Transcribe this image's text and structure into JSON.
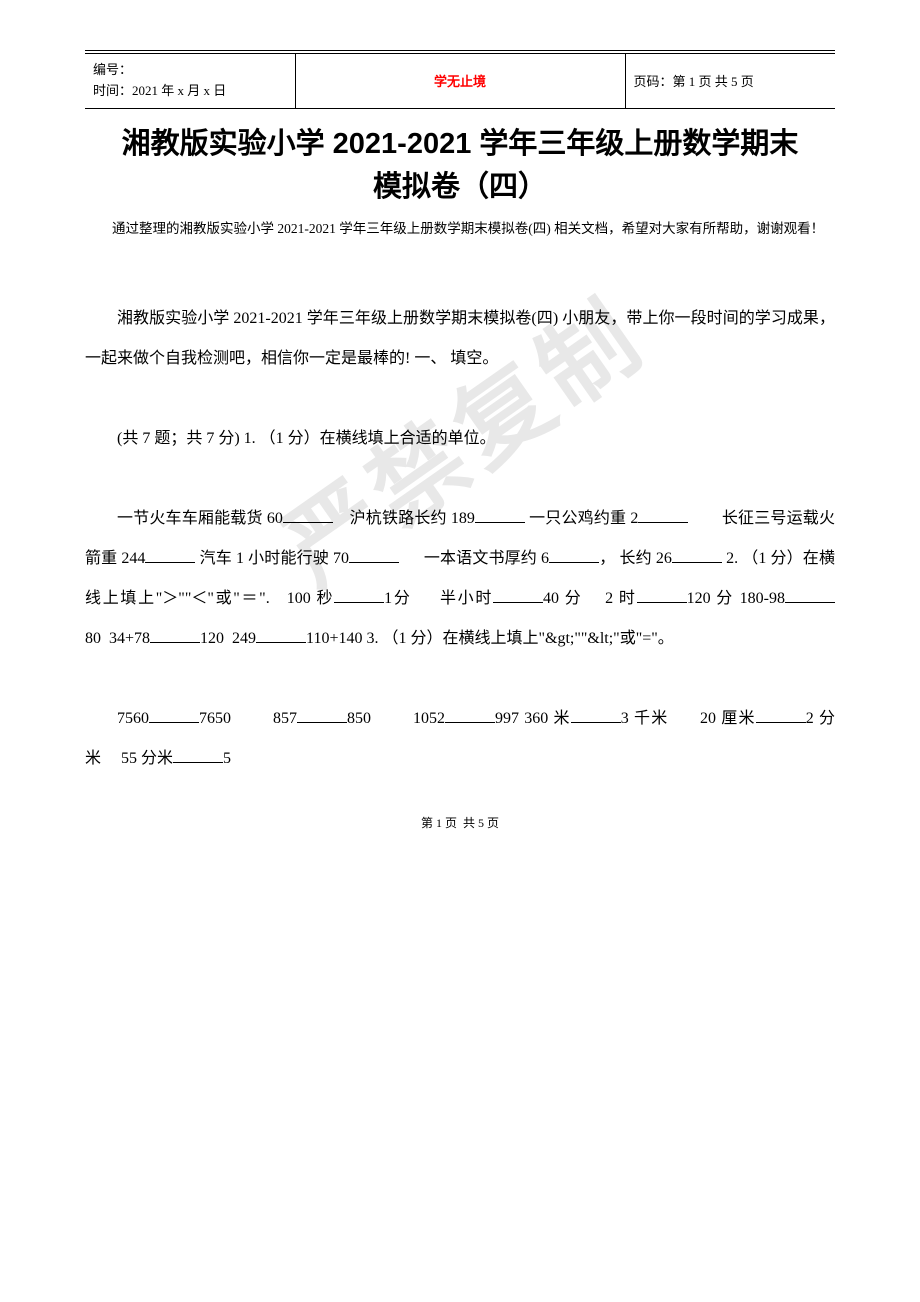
{
  "watermark": "严禁复制",
  "header": {
    "id_label": "编号：",
    "time_label": "时间：2021 年 x 月 x 日",
    "center_title": "学无止境",
    "page_label": "页码：第 1 页 共 5 页"
  },
  "title": "湘教版实验小学 2021-2021 学年三年级上册数学期末模拟卷（四）",
  "intro": "通过整理的湘教版实验小学 2021-2021 学年三年级上册数学期末模拟卷(四) 相关文档，希望对大家有所帮助，谢谢观看！",
  "paragraphs": {
    "p1": "湘教版实验小学 2021-2021 学年三年级上册数学期末模拟卷(四) 小朋友，带上你一段时间的学习成果，一起来做个自我检测吧，相信你一定是最棒的! 一、 填空。",
    "p2": "(共 7 题；共 7 分) 1. （1 分）在横线填上合适的单位。",
    "p3_part1": "一节火车车厢能载货 60",
    "p3_part2": "    沪杭铁路长约 189",
    "p3_part3": " 一只公鸡约重 2",
    "p3_part4": "        长征三号运载火箭重 244",
    "p3_part5": " 汽车 1 小时能行驶 70",
    "p3_part6": "      一本语文书厚约 6",
    "p3_part7": "， 长约 26",
    "p3_q2_intro": " 2. （1 分）在横线上填上\"＞\"\"＜\"或\"＝\".   100 秒",
    "p3_q2_a": "1分     半小时",
    "p3_q2_b": "40 分    2 时",
    "p3_q2_c": "120 分 180-98",
    "p3_q2_d": "80  34+78",
    "p3_q2_e": "120  249",
    "p3_q2_f": "110+140 3. （1 分）在横线上填上\"&gt;\"\"&lt;\"或\"=\"。",
    "p4_a": "7560",
    "p4_b": "7650        857",
    "p4_c": "850        1052",
    "p4_d": "997 360 米",
    "p4_e": "3 千米      20 厘米",
    "p4_f": "2 分米     55 分米",
    "p4_g": "5"
  },
  "footer": "第 1 页  共 5 页",
  "colors": {
    "title_red": "#ff0000",
    "text_black": "#000000",
    "watermark_gray": "#e8e8e8"
  }
}
